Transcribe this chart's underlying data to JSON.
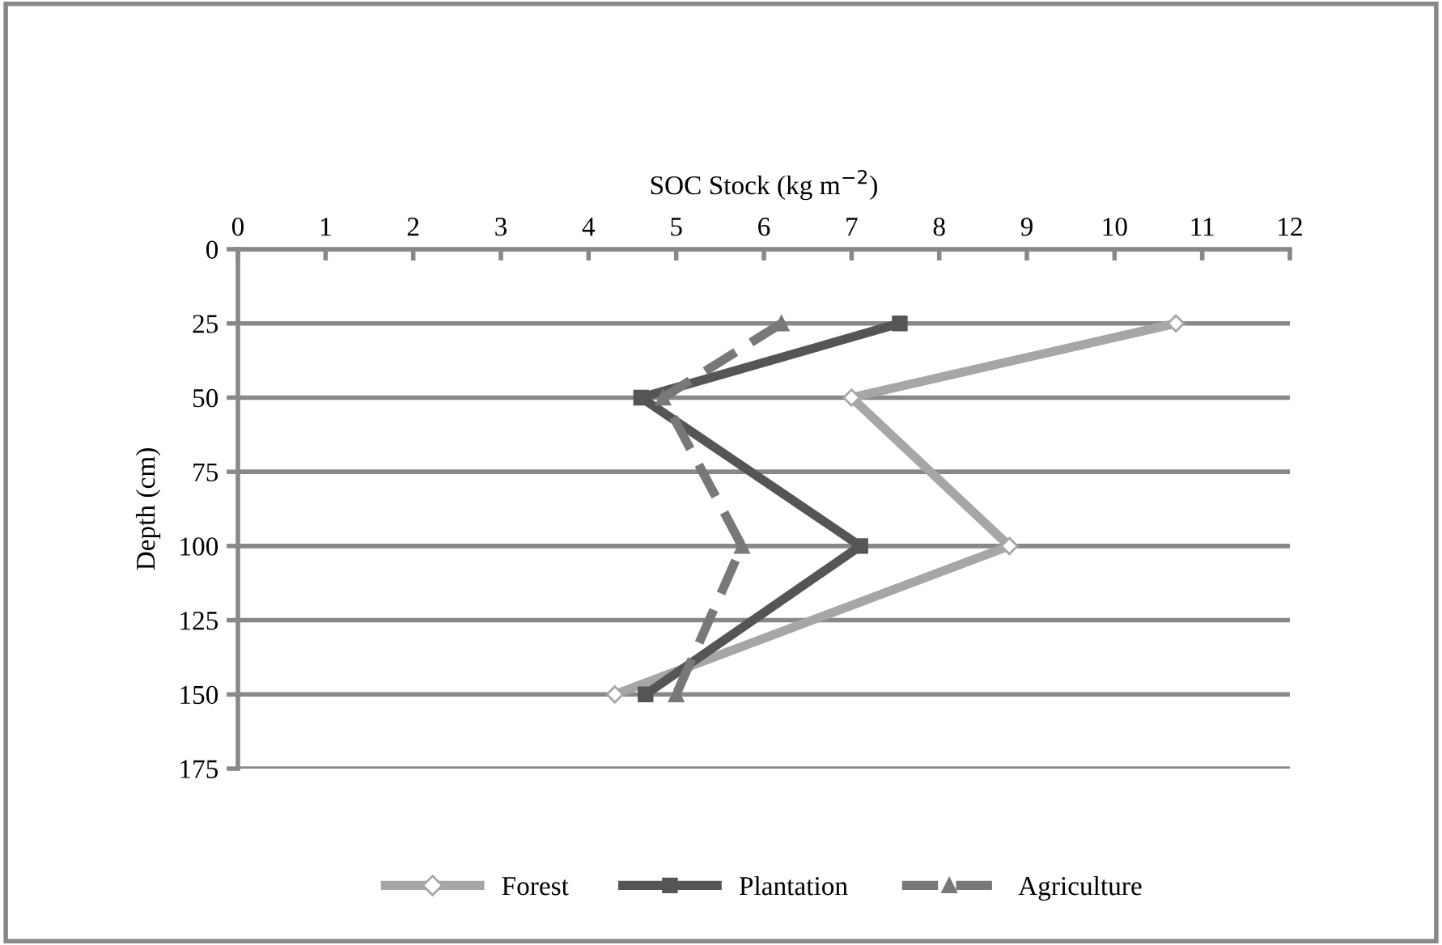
{
  "chart_data": {
    "type": "line",
    "orientation": "horizontal",
    "xlabel": "SOC Stock (kg m$^{−2}$)",
    "ylabel": "Depth (cm)",
    "x": [
      25,
      50,
      100,
      150
    ],
    "series": [
      {
        "name": "Forest",
        "color": "#a6a6a6",
        "marker": "diamond",
        "line_style": "solid",
        "values": [
          10.7,
          7.0,
          8.8,
          4.3
        ]
      },
      {
        "name": "Plantation",
        "color": "#555555",
        "marker": "square",
        "line_style": "solid",
        "values": [
          7.55,
          4.6,
          7.1,
          4.65
        ]
      },
      {
        "name": "Agriculture",
        "color": "#787878",
        "marker": "triangle",
        "line_style": "dashed",
        "values": [
          6.2,
          4.85,
          5.75,
          5.0
        ]
      }
    ],
    "xlim": [
      0,
      12
    ],
    "xticks": [
      0,
      1,
      2,
      3,
      4,
      5,
      6,
      7,
      8,
      9,
      10,
      11,
      12
    ],
    "ylim": [
      175,
      0
    ],
    "yticks": [
      0,
      25,
      50,
      75,
      100,
      125,
      150,
      175
    ],
    "grid": "y",
    "legend": "bottom"
  }
}
